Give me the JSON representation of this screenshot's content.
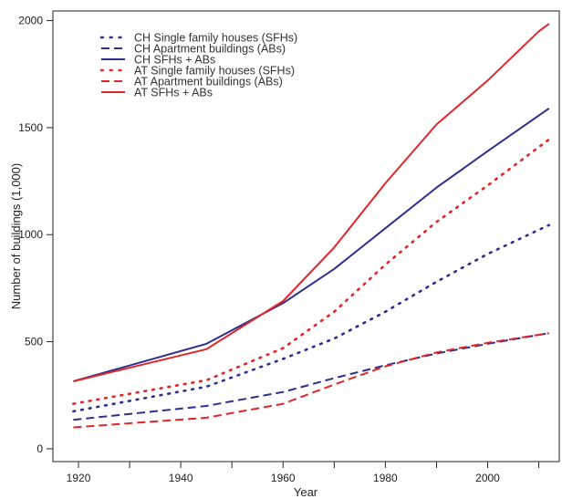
{
  "chart_data": {
    "type": "line",
    "title": "",
    "xlabel": "Year",
    "ylabel": "Number of buildings (1,000)",
    "xlim": [
      1915,
      2014
    ],
    "ylim": [
      -60,
      2045
    ],
    "xticks": [
      1920,
      1940,
      1960,
      1980,
      2000
    ],
    "xticks_minor": [
      1930,
      1950,
      1970,
      1990,
      2010
    ],
    "yticks": [
      0,
      500,
      1000,
      1500,
      2000
    ],
    "grid": false,
    "legend_position": "top-left",
    "series": [
      {
        "name": "CH Single family houses (SFHs)",
        "color": "#2e2f8c",
        "style": "dotted",
        "x": [
          1919,
          1945,
          1960,
          1970,
          1980,
          1990,
          2000,
          2012
        ],
        "y": [
          175,
          290,
          420,
          515,
          640,
          780,
          910,
          1045
        ]
      },
      {
        "name": "CH Apartment buildings (ABs)",
        "color": "#2e2f8c",
        "style": "dashed",
        "x": [
          1919,
          1945,
          1960,
          1970,
          1980,
          1990,
          2000,
          2012
        ],
        "y": [
          135,
          200,
          265,
          330,
          390,
          445,
          490,
          540
        ]
      },
      {
        "name": "CH SFHs + ABs",
        "color": "#2e2f8c",
        "style": "solid",
        "x": [
          1919,
          1945,
          1960,
          1970,
          1980,
          1990,
          2000,
          2012
        ],
        "y": [
          315,
          490,
          680,
          840,
          1030,
          1220,
          1390,
          1590
        ]
      },
      {
        "name": "AT Single family houses (SFHs)",
        "color": "#e0262b",
        "style": "dotted",
        "x": [
          1919,
          1945,
          1960,
          1970,
          1980,
          1990,
          2000,
          2012
        ],
        "y": [
          210,
          320,
          470,
          640,
          860,
          1060,
          1230,
          1445
        ]
      },
      {
        "name": "AT Apartment buildings (ABs)",
        "color": "#e0262b",
        "style": "dashed",
        "x": [
          1919,
          1945,
          1960,
          1970,
          1980,
          1990,
          2000,
          2012
        ],
        "y": [
          100,
          145,
          210,
          300,
          385,
          450,
          495,
          540
        ]
      },
      {
        "name": "AT SFHs + ABs",
        "color": "#e0262b",
        "style": "solid",
        "x": [
          1919,
          1945,
          1960,
          1970,
          1980,
          1990,
          2000,
          2010,
          2012
        ],
        "y": [
          315,
          465,
          690,
          940,
          1240,
          1515,
          1720,
          1950,
          1985
        ]
      }
    ]
  }
}
